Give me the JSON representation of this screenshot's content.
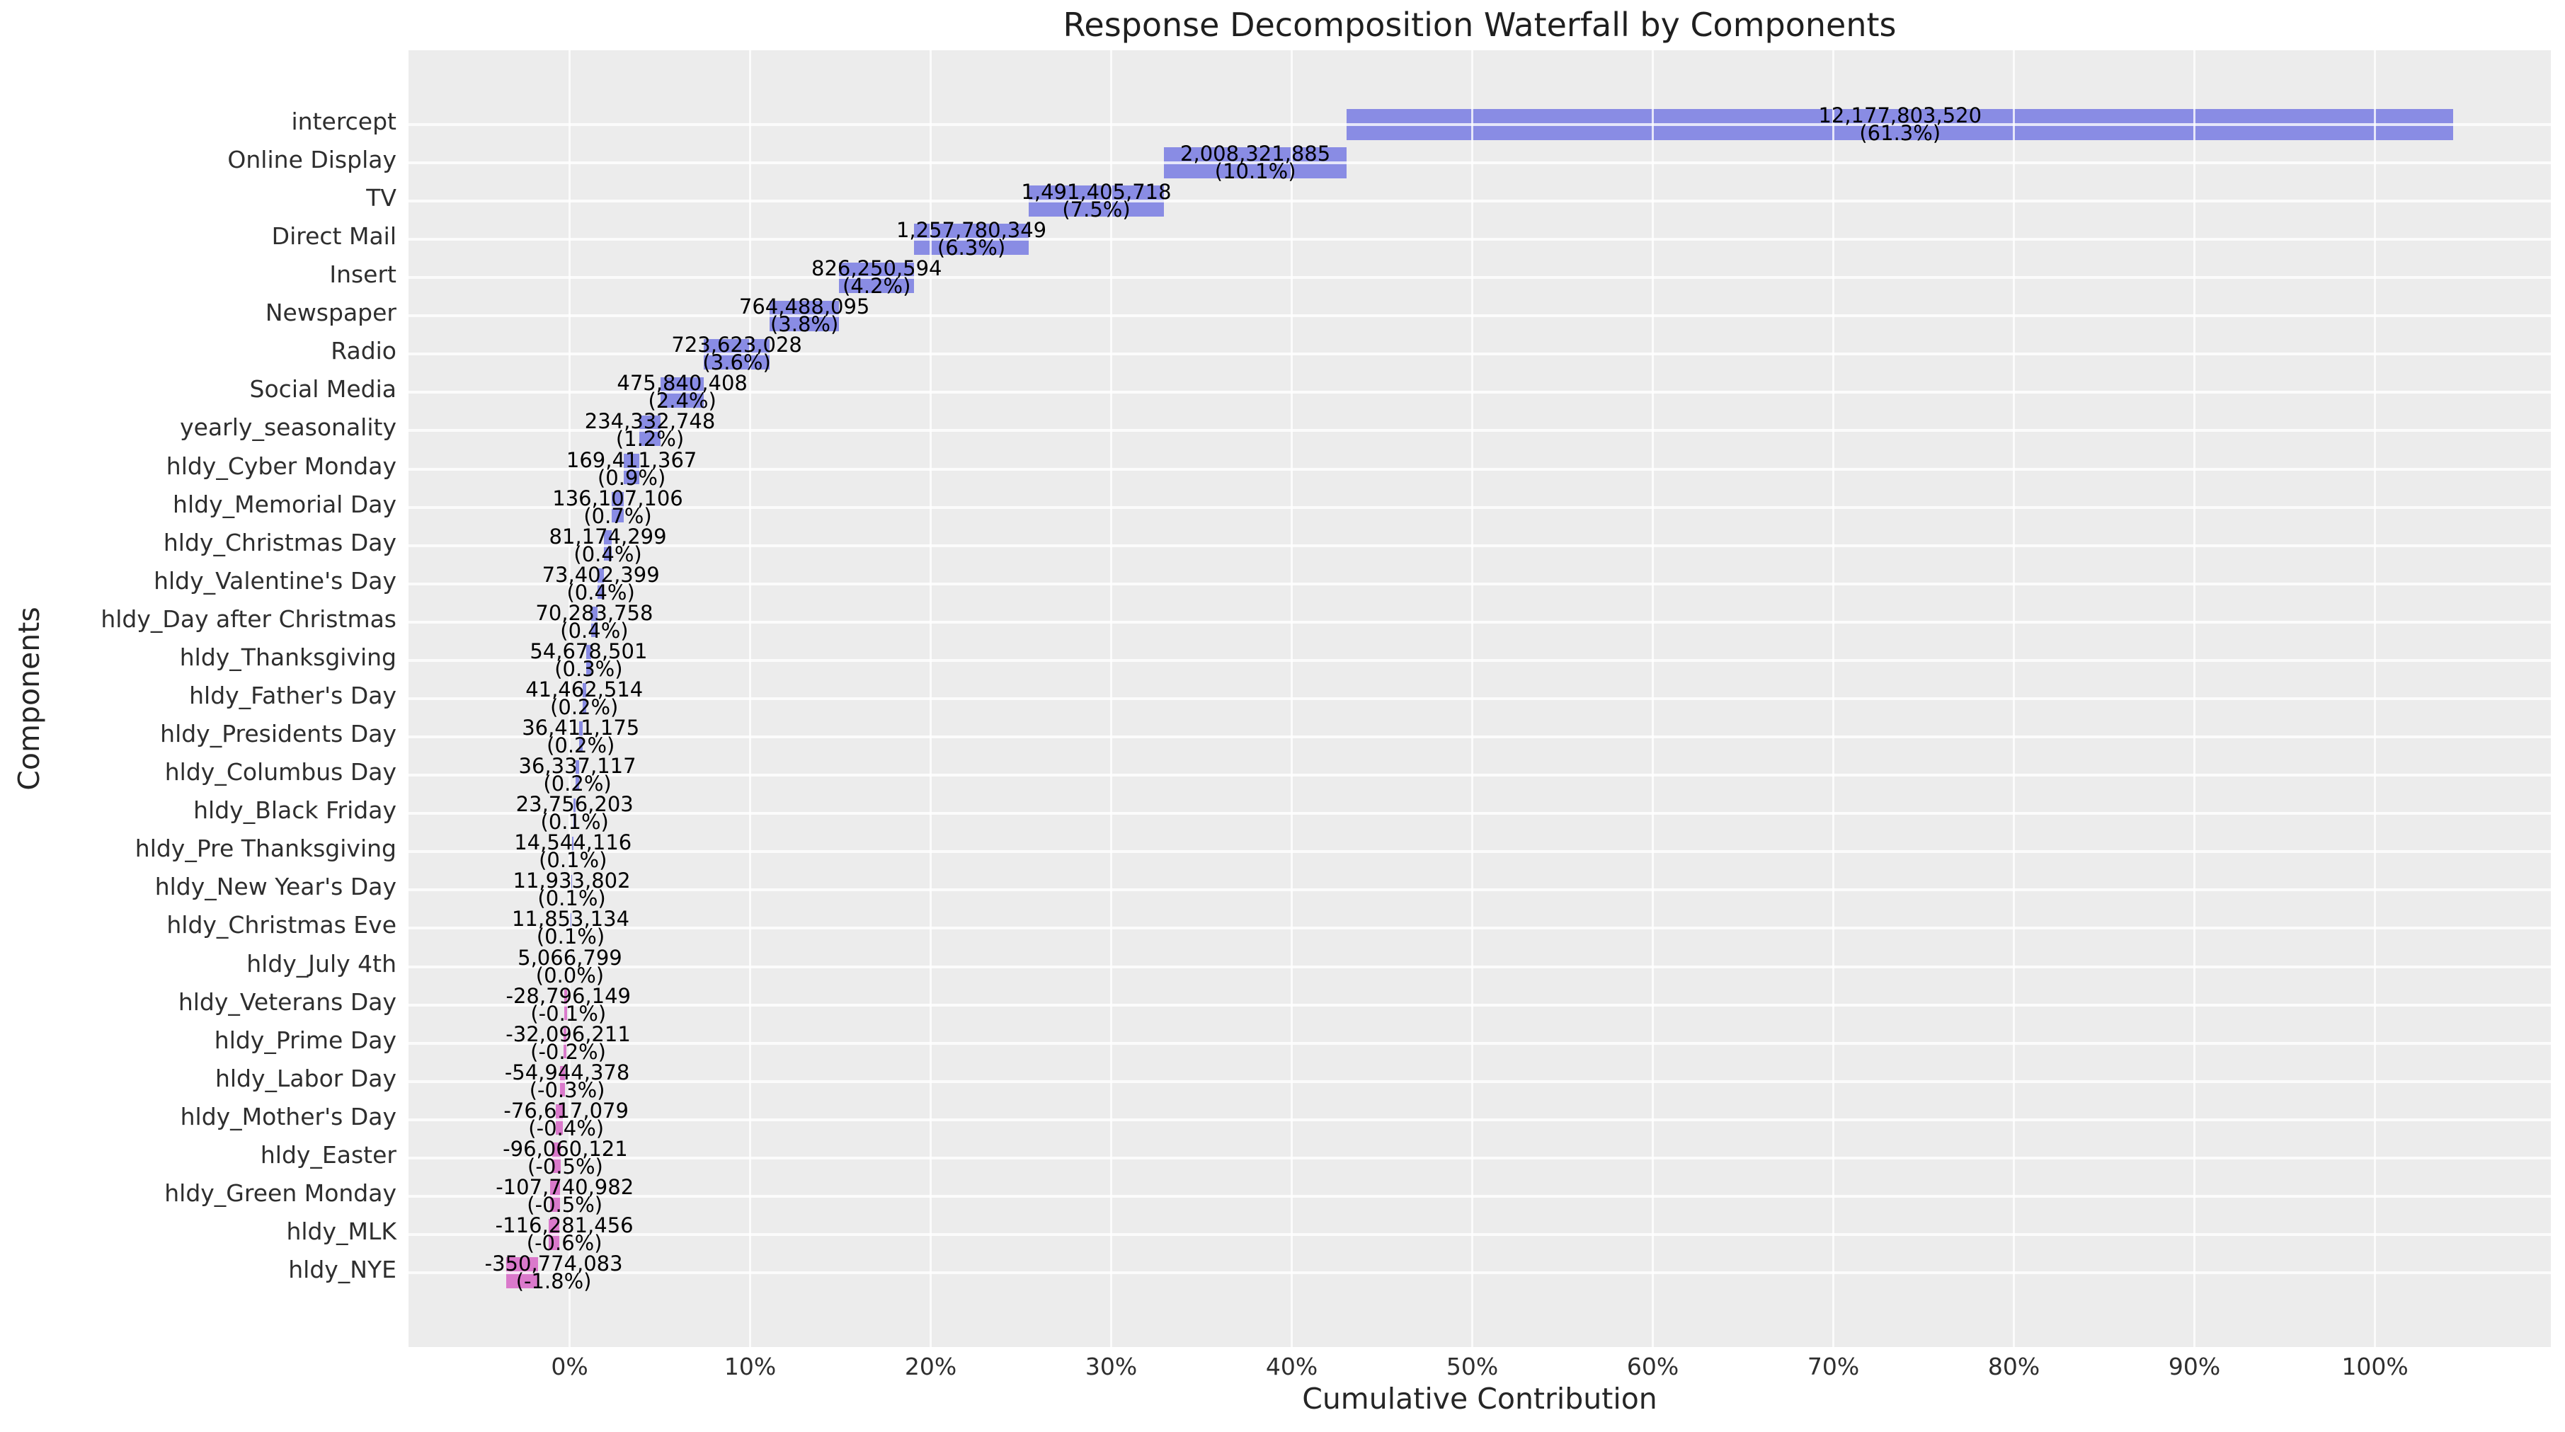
{
  "title": "Response Decomposition Waterfall by Components",
  "axes": {
    "xlabel": "Cumulative Contribution",
    "ylabel": "Components",
    "x_tick_labels": [
      "0%",
      "10%",
      "20%",
      "30%",
      "40%",
      "50%",
      "60%",
      "70%",
      "80%",
      "90%",
      "100%"
    ],
    "x_tick_values": [
      0,
      10,
      20,
      30,
      40,
      50,
      60,
      70,
      80,
      90,
      100
    ]
  },
  "colors": {
    "positive_bar": "#898ce4",
    "negative_bar": "#da79cb",
    "plot_background": "#ececec",
    "gridline": "#ffffff",
    "tick_text": "#2e2e2e",
    "title_text": "#1f1f1f",
    "bar_label_text": "#000000"
  },
  "chart_data": {
    "type": "bar",
    "subtype": "horizontal-waterfall",
    "title": "Response Decomposition Waterfall by Components",
    "xlabel": "Cumulative Contribution",
    "ylabel": "Components",
    "x_axis_format": "percent",
    "grid": true,
    "legend": false,
    "x_ticks_pct": [
      0,
      10,
      20,
      30,
      40,
      50,
      60,
      70,
      80,
      90,
      100
    ],
    "components": [
      {
        "label": "intercept",
        "value": 12177803520,
        "value_label": "12,177,803,520",
        "pct_label": "(61.3%)"
      },
      {
        "label": "Online Display",
        "value": 2008321885,
        "value_label": "2,008,321,885",
        "pct_label": "(10.1%)"
      },
      {
        "label": "TV",
        "value": 1491405718,
        "value_label": "1,491,405,718",
        "pct_label": "(7.5%)"
      },
      {
        "label": "Direct Mail",
        "value": 1257780349,
        "value_label": "1,257,780,349",
        "pct_label": "(6.3%)"
      },
      {
        "label": "Insert",
        "value": 826250594,
        "value_label": "826,250,594",
        "pct_label": "(4.2%)"
      },
      {
        "label": "Newspaper",
        "value": 764488095,
        "value_label": "764,488,095",
        "pct_label": "(3.8%)"
      },
      {
        "label": "Radio",
        "value": 723623028,
        "value_label": "723,623,028",
        "pct_label": "(3.6%)"
      },
      {
        "label": "Social Media",
        "value": 475840408,
        "value_label": "475,840,408",
        "pct_label": "(2.4%)"
      },
      {
        "label": "yearly_seasonality",
        "value": 234332748,
        "value_label": "234,332,748",
        "pct_label": "(1.2%)"
      },
      {
        "label": "hldy_Cyber Monday",
        "value": 169411367,
        "value_label": "169,411,367",
        "pct_label": "(0.9%)"
      },
      {
        "label": "hldy_Memorial Day",
        "value": 136107106,
        "value_label": "136,107,106",
        "pct_label": "(0.7%)"
      },
      {
        "label": "hldy_Christmas Day",
        "value": 81174299,
        "value_label": "81,174,299",
        "pct_label": "(0.4%)"
      },
      {
        "label": "hldy_Valentine's Day",
        "value": 73402399,
        "value_label": "73,402,399",
        "pct_label": "(0.4%)"
      },
      {
        "label": "hldy_Day after Christmas",
        "value": 70283758,
        "value_label": "70,283,758",
        "pct_label": "(0.4%)"
      },
      {
        "label": "hldy_Thanksgiving",
        "value": 54678501,
        "value_label": "54,678,501",
        "pct_label": "(0.3%)"
      },
      {
        "label": "hldy_Father's Day",
        "value": 41462514,
        "value_label": "41,462,514",
        "pct_label": "(0.2%)"
      },
      {
        "label": "hldy_Presidents Day",
        "value": 36411175,
        "value_label": "36,411,175",
        "pct_label": "(0.2%)"
      },
      {
        "label": "hldy_Columbus Day",
        "value": 36337117,
        "value_label": "36,337,117",
        "pct_label": "(0.2%)"
      },
      {
        "label": "hldy_Black Friday",
        "value": 23756203,
        "value_label": "23,756,203",
        "pct_label": "(0.1%)"
      },
      {
        "label": "hldy_Pre Thanksgiving",
        "value": 14544116,
        "value_label": "14,544,116",
        "pct_label": "(0.1%)"
      },
      {
        "label": "hldy_New Year's Day",
        "value": 11933802,
        "value_label": "11,933,802",
        "pct_label": "(0.1%)"
      },
      {
        "label": "hldy_Christmas Eve",
        "value": 11853134,
        "value_label": "11,853,134",
        "pct_label": "(0.1%)"
      },
      {
        "label": "hldy_July 4th",
        "value": 5066799,
        "value_label": "5,066,799",
        "pct_label": "(0.0%)"
      },
      {
        "label": "hldy_Veterans Day",
        "value": -28796149,
        "value_label": "-28,796,149",
        "pct_label": "(-0.1%)"
      },
      {
        "label": "hldy_Prime Day",
        "value": -32096211,
        "value_label": "-32,096,211",
        "pct_label": "(-0.2%)"
      },
      {
        "label": "hldy_Labor Day",
        "value": -54944378,
        "value_label": "-54,944,378",
        "pct_label": "(-0.3%)"
      },
      {
        "label": "hldy_Mother's Day",
        "value": -76617079,
        "value_label": "-76,617,079",
        "pct_label": "(-0.4%)"
      },
      {
        "label": "hldy_Easter",
        "value": -96060121,
        "value_label": "-96,060,121",
        "pct_label": "(-0.5%)"
      },
      {
        "label": "hldy_Green Monday",
        "value": -107740982,
        "value_label": "-107,740,982",
        "pct_label": "(-0.5%)"
      },
      {
        "label": "hldy_MLK",
        "value": -116281456,
        "value_label": "-116,281,456",
        "pct_label": "(-0.6%)"
      },
      {
        "label": "hldy_NYE",
        "value": -350774083,
        "value_label": "-350,774,083",
        "pct_label": "(-1.8%)"
      }
    ]
  }
}
